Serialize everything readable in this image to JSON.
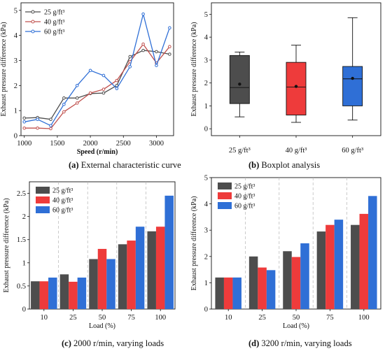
{
  "chart_data": [
    {
      "panel": "a",
      "type": "line",
      "xlabel": "Speed (r/min)",
      "ylabel": "Exhaust pressure difference (kPa)",
      "xlim": [
        950,
        3260
      ],
      "ylim": [
        0,
        5.3
      ],
      "xticks": [
        1000,
        1500,
        2000,
        2500,
        3000
      ],
      "yticks": [
        0,
        1,
        2,
        3,
        4,
        5
      ],
      "legend_position": "top-left",
      "x": [
        1000,
        1200,
        1400,
        1600,
        1800,
        2000,
        2200,
        2400,
        2600,
        2800,
        3000,
        3200
      ],
      "series": [
        {
          "name": "25 g/ft³",
          "color": "#4d4d4d",
          "values": [
            0.7,
            0.72,
            0.65,
            1.5,
            1.5,
            1.68,
            1.7,
            2.0,
            3.15,
            3.4,
            3.35,
            3.25
          ]
        },
        {
          "name": "40 g/ft³",
          "color": "#c0504d",
          "values": [
            0.3,
            0.3,
            0.28,
            0.95,
            1.3,
            1.7,
            1.85,
            2.2,
            2.95,
            3.65,
            2.9,
            3.55
          ]
        },
        {
          "name": "60 g/ft³",
          "color": "#2f6fd6",
          "values": [
            0.55,
            0.65,
            0.4,
            1.25,
            2.0,
            2.6,
            2.4,
            1.88,
            2.75,
            4.85,
            2.8,
            4.3
          ]
        }
      ],
      "caption_letter": "(a)",
      "caption_text": "External characteristic curve"
    },
    {
      "panel": "b",
      "type": "boxplot",
      "ylabel": "Exhaust pressure difference (kPa)",
      "ylim": [
        -0.3,
        5.5
      ],
      "yticks": [
        0,
        1,
        2,
        3,
        4,
        5
      ],
      "categories": [
        "25 g/ft³",
        "40 g/ft³",
        "60 g/ft³"
      ],
      "boxes": [
        {
          "color": "#4d4d4d",
          "min": 0.52,
          "q1": 1.1,
          "median": 1.8,
          "q3": 3.2,
          "max": 3.35,
          "mean": 1.95
        },
        {
          "color": "#ee3b3b",
          "min": 0.28,
          "q1": 0.6,
          "median": 1.82,
          "q3": 2.9,
          "max": 3.65,
          "mean": 1.85
        },
        {
          "color": "#2f6fd6",
          "min": 0.38,
          "q1": 1.0,
          "median": 2.18,
          "q3": 2.72,
          "max": 4.85,
          "mean": 2.2
        }
      ],
      "caption_letter": "(b)",
      "caption_text": "Boxplot analysis"
    },
    {
      "panel": "c",
      "type": "bar",
      "xlabel": "Load (%)",
      "ylabel": "Exhaust pressure difference (kPa)",
      "ylim": [
        0,
        2.75
      ],
      "yticks": [
        0,
        0.5,
        1,
        1.5,
        2,
        2.5
      ],
      "ytick_labels": [
        "0",
        "0.5",
        "1",
        "1.5",
        "2",
        "2.5"
      ],
      "categories": [
        "10",
        "25",
        "50",
        "75",
        "100"
      ],
      "legend_position": "top-left",
      "series": [
        {
          "name": "25 g/ft³",
          "color": "#4d4d4d",
          "values": [
            0.6,
            0.75,
            1.08,
            1.4,
            1.68
          ]
        },
        {
          "name": "40 g/ft³",
          "color": "#ee3b3b",
          "values": [
            0.6,
            0.59,
            1.3,
            1.48,
            1.78
          ]
        },
        {
          "name": "60 g/ft³",
          "color": "#2f6fd6",
          "values": [
            0.68,
            0.68,
            1.08,
            1.78,
            2.45
          ]
        }
      ],
      "caption_letter": "(c)",
      "caption_text": "2000 r/min, varying loads"
    },
    {
      "panel": "d",
      "type": "bar",
      "xlabel": "Load (%)",
      "ylabel": "Exhaust pressure difference (kPa)",
      "ylim": [
        0,
        5
      ],
      "yticks": [
        0,
        1,
        2,
        3,
        4,
        5
      ],
      "ytick_labels": [
        "0",
        "1",
        "2",
        "3",
        "4",
        "5"
      ],
      "categories": [
        "10",
        "25",
        "50",
        "75",
        "100"
      ],
      "legend_position": "top-left",
      "series": [
        {
          "name": "25 g/ft³",
          "color": "#4d4d4d",
          "values": [
            1.2,
            2.0,
            2.2,
            2.95,
            3.2
          ]
        },
        {
          "name": "40 g/ft³",
          "color": "#ee3b3b",
          "values": [
            1.2,
            1.58,
            1.98,
            3.2,
            3.62
          ]
        },
        {
          "name": "60 g/ft³",
          "color": "#2f6fd6",
          "values": [
            1.2,
            1.48,
            2.5,
            3.4,
            4.3
          ]
        }
      ],
      "caption_letter": "(d)",
      "caption_text": "3200 r/min, varying loads"
    }
  ]
}
